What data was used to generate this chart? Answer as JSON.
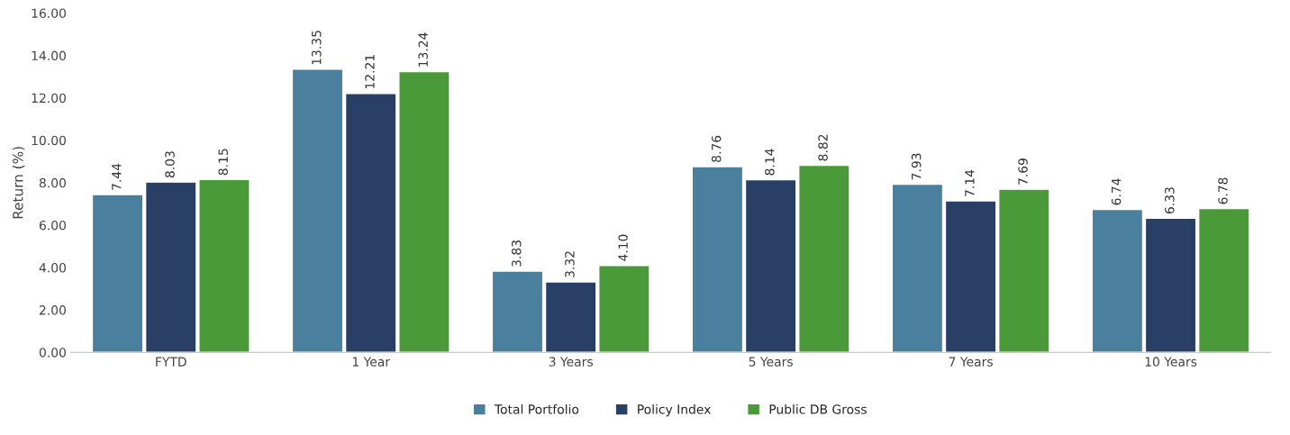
{
  "chart_data": {
    "type": "bar",
    "ylabel": "Return (%)",
    "categories": [
      "FYTD",
      "1 Year",
      "3 Years",
      "5 Years",
      "7 Years",
      "10 Years"
    ],
    "series": [
      {
        "name": "Total Portfolio",
        "color": "#4a7f9e",
        "values": [
          7.44,
          13.35,
          3.83,
          8.76,
          7.93,
          6.74
        ],
        "value_labels": [
          "7.44",
          "13.35",
          "3.83",
          "8.76",
          "7.93",
          "6.74"
        ]
      },
      {
        "name": "Policy Index",
        "color": "#2a3f66",
        "values": [
          8.03,
          12.21,
          3.32,
          8.14,
          7.14,
          6.33
        ],
        "value_labels": [
          "8.03",
          "12.21",
          "3.32",
          "8.14",
          "7.14",
          "6.33"
        ]
      },
      {
        "name": "Public DB Gross",
        "color": "#4b9a3a",
        "values": [
          8.15,
          13.24,
          4.1,
          8.82,
          7.69,
          6.78
        ],
        "value_labels": [
          "8.15",
          "13.24",
          "4.10",
          "8.82",
          "7.69",
          "6.78"
        ]
      }
    ],
    "ylim": [
      0,
      16
    ],
    "yticks": [
      {
        "value": 0,
        "label": "0.00"
      },
      {
        "value": 2,
        "label": "2.00"
      },
      {
        "value": 4,
        "label": "4.00"
      },
      {
        "value": 6,
        "label": "6.00"
      },
      {
        "value": 8,
        "label": "8.00"
      },
      {
        "value": 10,
        "label": "10.00"
      },
      {
        "value": 12,
        "label": "12.00"
      },
      {
        "value": 14,
        "label": "14.00"
      },
      {
        "value": 16,
        "label": "16.00"
      }
    ],
    "grid": false,
    "legend": "bottom"
  }
}
